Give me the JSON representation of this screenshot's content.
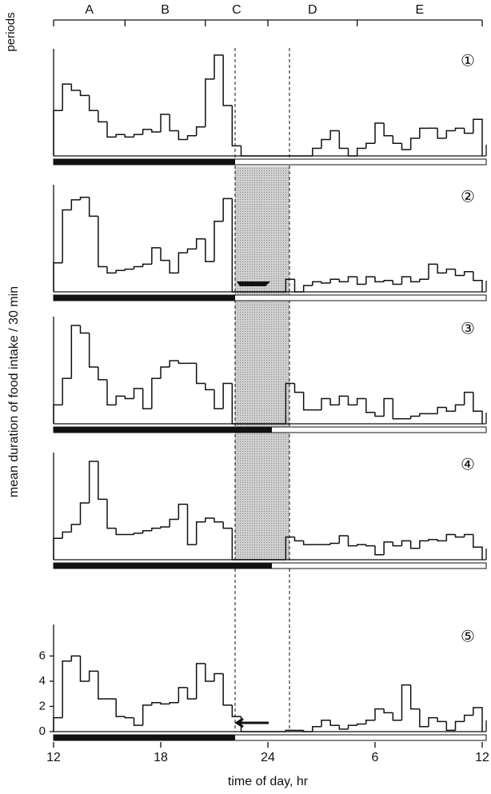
{
  "axes": {
    "periods_label": "periods",
    "periods": [
      "A",
      "B",
      "C",
      "D",
      "E"
    ],
    "period_bounds": [
      12,
      16,
      20.5,
      24,
      29,
      36
    ],
    "ylabel": "mean duration of food intake / 30 min",
    "xlabel": "time of day, hr",
    "xlim": [
      12,
      36
    ],
    "xticks": [
      12,
      18,
      24,
      {
        "value": 30,
        "label": "6"
      },
      {
        "value": 36,
        "label": "12"
      }
    ]
  },
  "chart_data": [
    {
      "type": "histogram",
      "label": "①",
      "ylim": [
        0,
        8.5
      ],
      "bins": [
        12,
        12.5,
        13,
        13.5,
        14,
        14.5,
        15,
        15.5,
        16,
        16.5,
        17,
        17.5,
        18,
        18.5,
        19,
        19.5,
        20,
        20.5,
        21,
        21.5,
        22,
        22.5,
        23,
        23.5,
        24,
        24.5,
        25,
        25.5,
        26,
        26.5,
        27,
        27.5,
        28,
        28.5,
        29,
        29.5,
        30,
        30.5,
        31,
        31.5,
        32,
        32.5,
        33,
        33.5,
        34,
        34.5,
        35,
        35.5,
        36
      ],
      "values": [
        3.6,
        5.7,
        5.2,
        4.8,
        3.6,
        2.7,
        1.5,
        1.7,
        1.5,
        1.7,
        2.1,
        1.9,
        3.3,
        2.0,
        1.3,
        1.6,
        2.3,
        6.1,
        8.0,
        4.0,
        0.8,
        0,
        0,
        0,
        0,
        0,
        0,
        0,
        0,
        0.6,
        1.3,
        2.0,
        0.6,
        0,
        0.6,
        1.0,
        2.6,
        1.6,
        1.0,
        0.5,
        1.4,
        2.2,
        2.2,
        1.4,
        2.0,
        2.2,
        1.8,
        2.9
      ]
    },
    {
      "type": "histogram",
      "label": "②",
      "ylim": [
        0,
        8.5
      ],
      "bins": [
        12,
        12.5,
        13,
        13.5,
        14,
        14.5,
        15,
        15.5,
        16,
        16.5,
        17,
        17.5,
        18,
        18.5,
        19,
        19.5,
        20,
        20.5,
        21,
        21.5,
        22,
        22.5,
        23,
        23.5,
        24,
        24.5,
        25,
        25.5,
        26,
        26.5,
        27,
        27.5,
        28,
        28.5,
        29,
        29.5,
        30,
        30.5,
        31,
        31.5,
        32,
        32.5,
        33,
        33.5,
        34,
        34.5,
        35,
        35.5,
        36
      ],
      "values": [
        2.3,
        6.5,
        7.3,
        7.5,
        6.0,
        2.0,
        1.5,
        1.7,
        1.8,
        2.0,
        2.2,
        3.5,
        2.5,
        1.5,
        3.1,
        3.4,
        4.2,
        2.4,
        5.6,
        7.4,
        0,
        0,
        0,
        0,
        0,
        0,
        1.0,
        0,
        0.5,
        0.8,
        0.7,
        1.0,
        0.8,
        1.2,
        0.6,
        1.2,
        0.8,
        0.9,
        0.6,
        1.2,
        0.8,
        1.0,
        2.2,
        1.5,
        1.8,
        1.3,
        1.6,
        0.9
      ]
    },
    {
      "type": "histogram",
      "label": "③",
      "ylim": [
        0,
        8.5
      ],
      "bins": [
        12,
        12.5,
        13,
        13.5,
        14,
        14.5,
        15,
        15.5,
        16,
        16.5,
        17,
        17.5,
        18,
        18.5,
        19,
        19.5,
        20,
        20.5,
        21,
        21.5,
        22,
        22.5,
        23,
        23.5,
        24,
        24.5,
        25,
        25.5,
        26,
        26.5,
        27,
        27.5,
        28,
        28.5,
        29,
        29.5,
        30,
        30.5,
        31,
        31.5,
        32,
        32.5,
        33,
        33.5,
        34,
        34.5,
        35,
        35.5,
        36
      ],
      "values": [
        1.5,
        3.6,
        7.8,
        7.2,
        4.5,
        3.5,
        1.5,
        2.2,
        2.0,
        2.8,
        1.2,
        3.6,
        4.5,
        5.0,
        4.8,
        4.8,
        3.2,
        2.7,
        1.2,
        3.2,
        0,
        0,
        0,
        0,
        0,
        0,
        3.2,
        2.5,
        1.1,
        1.1,
        2.0,
        1.5,
        2.2,
        1.5,
        2.0,
        0.9,
        0.6,
        2.0,
        0.4,
        0.4,
        0.6,
        0.8,
        0.8,
        1.3,
        1.0,
        1.5,
        2.5,
        1.0
      ]
    },
    {
      "type": "histogram",
      "label": "④",
      "ylim": [
        0,
        8.5
      ],
      "bins": [
        12,
        12.5,
        13,
        13.5,
        14,
        14.5,
        15,
        15.5,
        16,
        16.5,
        17,
        17.5,
        18,
        18.5,
        19,
        19.5,
        20,
        20.5,
        21,
        21.5,
        22,
        22.5,
        23,
        23.5,
        24,
        24.5,
        25,
        25.5,
        26,
        26.5,
        27,
        27.5,
        28,
        28.5,
        29,
        29.5,
        30,
        30.5,
        31,
        31.5,
        32,
        32.5,
        33,
        33.5,
        34,
        34.5,
        35,
        35.5,
        36
      ],
      "values": [
        1.7,
        2.2,
        2.8,
        4.5,
        7.8,
        4.8,
        2.5,
        2.0,
        2.0,
        2.1,
        2.3,
        2.5,
        2.6,
        3.2,
        4.4,
        1.2,
        3.0,
        3.3,
        3.0,
        2.5,
        0,
        0,
        0,
        0,
        0,
        0,
        1.8,
        1.5,
        1.2,
        1.2,
        1.2,
        1.3,
        1.9,
        1.1,
        1.2,
        1.1,
        0.4,
        1.4,
        1.1,
        1.5,
        0.9,
        1.5,
        1.6,
        1.5,
        2.0,
        1.8,
        2.0,
        1.0
      ]
    },
    {
      "type": "histogram",
      "label": "⑤",
      "ylim": [
        0,
        8.5
      ],
      "yticks": [
        0,
        2,
        4,
        6
      ],
      "bins": [
        12,
        12.5,
        13,
        13.5,
        14,
        14.5,
        15,
        15.5,
        16,
        16.5,
        17,
        17.5,
        18,
        18.5,
        19,
        19.5,
        20,
        20.5,
        21,
        21.5,
        22,
        22.5,
        23,
        23.5,
        24,
        24.5,
        25,
        25.5,
        26,
        26.5,
        27,
        27.5,
        28,
        28.5,
        29,
        29.5,
        30,
        30.5,
        31,
        31.5,
        32,
        32.5,
        33,
        33.5,
        34,
        34.5,
        35,
        35.5,
        36
      ],
      "values": [
        1.1,
        5.6,
        6.0,
        4.0,
        4.8,
        2.6,
        2.6,
        1.2,
        1.1,
        0.5,
        2.1,
        2.3,
        2.2,
        2.3,
        3.5,
        2.6,
        5.4,
        4.0,
        4.6,
        2.1,
        1.2,
        0,
        0,
        0,
        0,
        0,
        0.1,
        0.1,
        0,
        0.4,
        0.9,
        0.5,
        0.2,
        0.5,
        0.6,
        0.9,
        1.8,
        1.5,
        0.9,
        3.7,
        1.8,
        0.4,
        1.1,
        0.8,
        0.1,
        0.8,
        1.3,
        1.9
      ]
    }
  ]
}
